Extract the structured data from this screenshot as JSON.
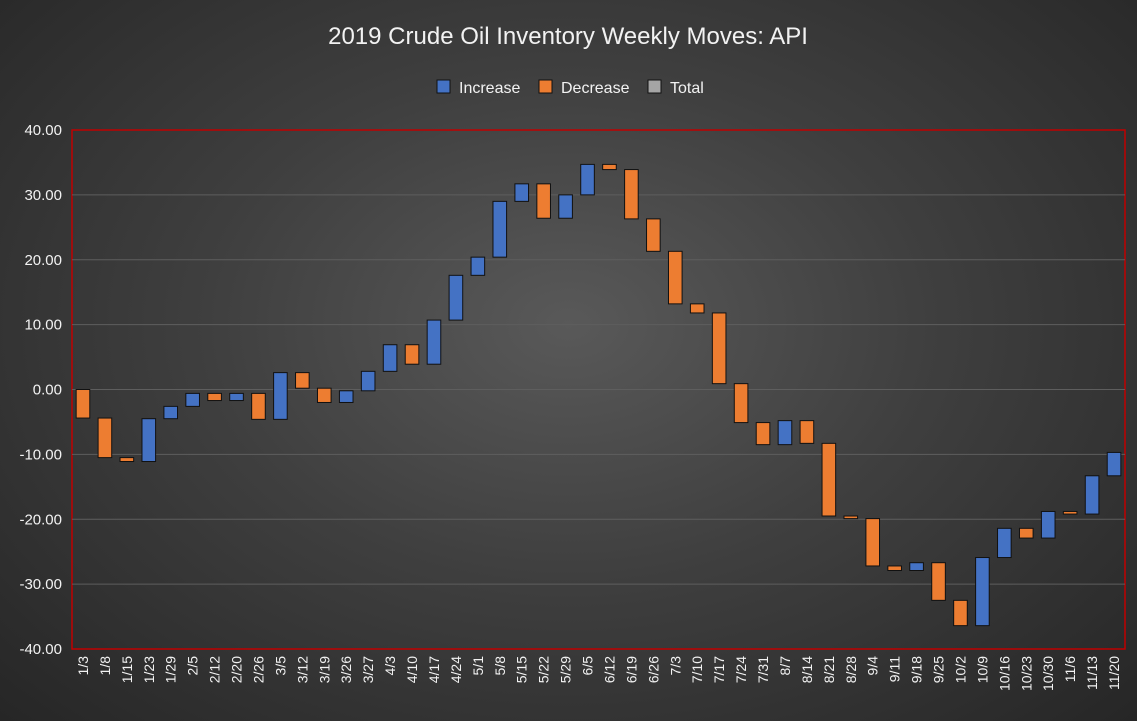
{
  "chart_data": {
    "type": "waterfall",
    "title": "2019 Crude Oil Inventory Weekly Moves: API",
    "legend": [
      {
        "label": "Increase",
        "color": "#4472c4"
      },
      {
        "label": "Decrease",
        "color": "#ed7d31"
      },
      {
        "label": "Total",
        "color": "#a5a5a5"
      }
    ],
    "legend_position": "top",
    "ylim": [
      -40,
      40
    ],
    "y_ticks": [
      "40.00",
      "30.00",
      "20.00",
      "10.00",
      "0.00",
      "-10.00",
      "-20.00",
      "-30.00",
      "-40.00"
    ],
    "grid": true,
    "categories": [
      "1/3",
      "1/8",
      "1/15",
      "1/23",
      "1/29",
      "2/5",
      "2/12",
      "2/20",
      "2/26",
      "3/5",
      "3/12",
      "3/19",
      "3/26",
      "3/27",
      "4/3",
      "4/10",
      "4/17",
      "4/24",
      "5/1",
      "5/8",
      "5/15",
      "5/22",
      "5/29",
      "6/5",
      "6/12",
      "6/19",
      "6/26",
      "7/3",
      "7/10",
      "7/17",
      "7/24",
      "7/31",
      "8/7",
      "8/14",
      "8/21",
      "8/28",
      "9/4",
      "9/11",
      "9/18",
      "9/25",
      "10/2",
      "10/9",
      "10/16",
      "10/23",
      "10/30",
      "11/6",
      "11/13",
      "11/20"
    ],
    "values": [
      -4.4,
      -6.1,
      -0.6,
      6.6,
      1.9,
      2.0,
      -1.1,
      1.1,
      -4.0,
      7.2,
      -2.4,
      -2.2,
      1.8,
      3.0,
      4.1,
      -3.0,
      6.8,
      6.9,
      2.8,
      8.6,
      2.7,
      -5.3,
      3.6,
      4.7,
      -0.8,
      -7.6,
      -5.0,
      -8.1,
      -1.4,
      -10.9,
      -6.0,
      -3.4,
      3.7,
      -3.5,
      -11.2,
      -0.4,
      -7.3,
      -0.7,
      1.2,
      -5.8,
      -3.9,
      10.5,
      4.5,
      -1.5,
      4.1,
      -0.4,
      5.9,
      3.6
    ],
    "increase_color": "#4472c4",
    "decrease_color": "#ed7d31",
    "plot_border_color": "#c00000"
  }
}
